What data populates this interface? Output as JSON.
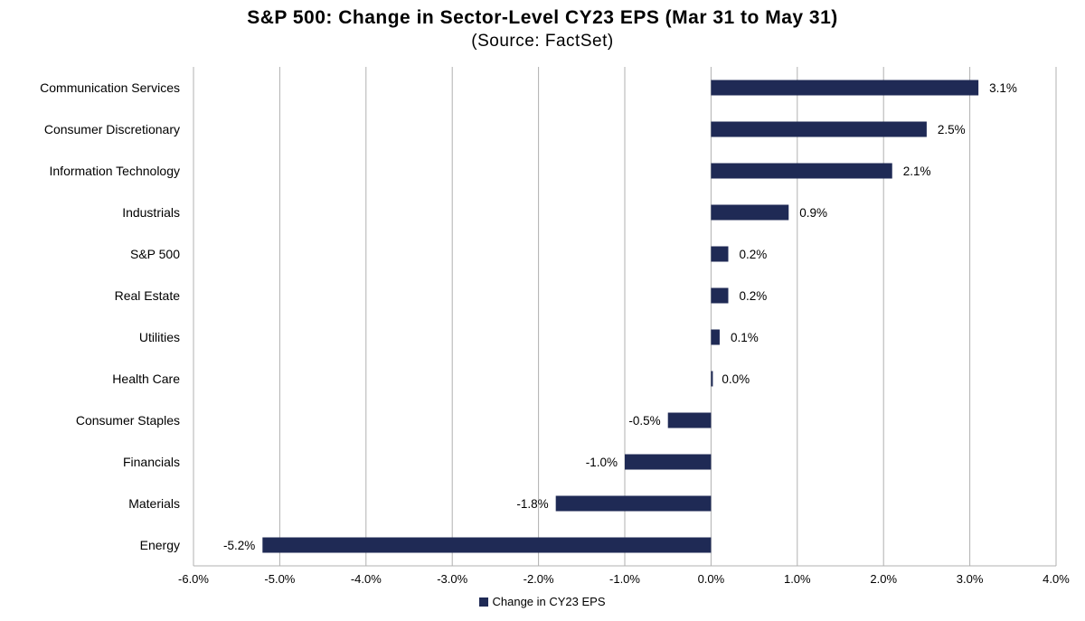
{
  "chart_data": {
    "type": "bar",
    "orientation": "horizontal",
    "title": "S&P 500: Change in Sector-Level CY23 EPS (Mar 31 to May 31)",
    "subtitle": "(Source: FactSet)",
    "categories": [
      "Communication Services",
      "Consumer Discretionary",
      "Information Technology",
      "Industrials",
      "S&P 500",
      "Real Estate",
      "Utilities",
      "Health Care",
      "Consumer Staples",
      "Financials",
      "Materials",
      "Energy"
    ],
    "series": [
      {
        "name": "Change in CY23 EPS",
        "values": [
          3.1,
          2.5,
          2.1,
          0.9,
          0.2,
          0.2,
          0.1,
          0.0,
          -0.5,
          -1.0,
          -1.8,
          -5.2
        ],
        "labels": [
          "3.1%",
          "2.5%",
          "2.1%",
          "0.9%",
          "0.2%",
          "0.2%",
          "0.1%",
          "0.0%",
          "-0.5%",
          "-1.0%",
          "-1.8%",
          "-5.2%"
        ],
        "color": "#1f2a55"
      }
    ],
    "xlim": [
      -6,
      4
    ],
    "xticks": [
      -6,
      -5,
      -4,
      -3,
      -2,
      -1,
      0,
      1,
      2,
      3,
      4
    ],
    "xtick_labels": [
      "-6.0%",
      "-5.0%",
      "-4.0%",
      "-3.0%",
      "-2.0%",
      "-1.0%",
      "0.0%",
      "1.0%",
      "2.0%",
      "3.0%",
      "4.0%"
    ],
    "grid": "vertical",
    "gridline_color": "#b0b0b0",
    "legend_position": "bottom-center"
  }
}
